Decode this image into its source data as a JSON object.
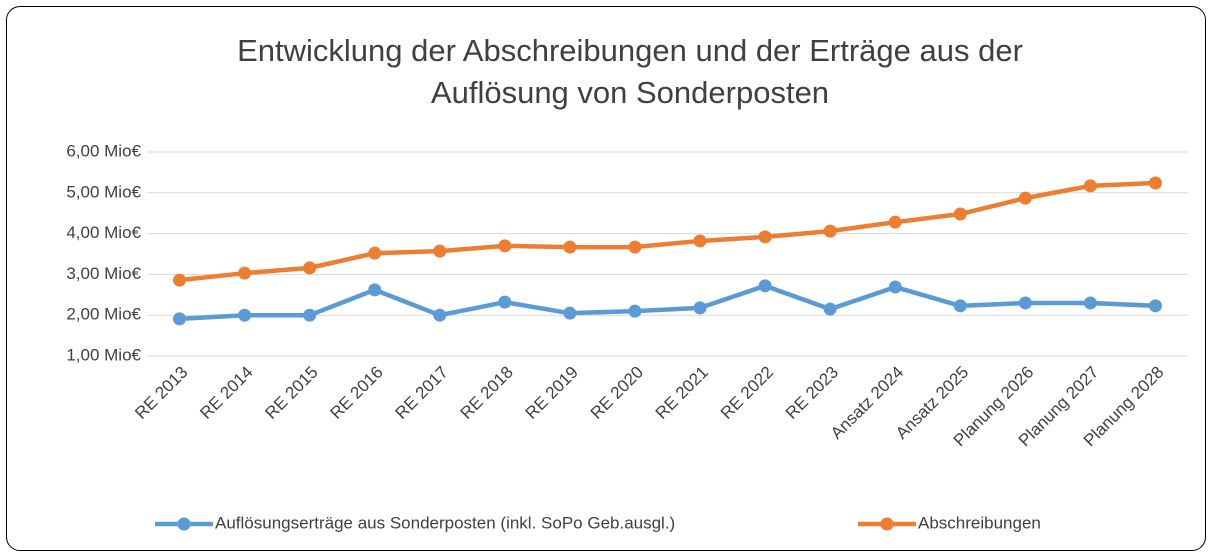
{
  "chart_data": {
    "type": "line",
    "title": "Entwicklung der Abschreibungen und der Erträge aus der Auflösung von Sonderposten",
    "categories": [
      "RE 2013",
      "RE 2014",
      "RE 2015",
      "RE 2016",
      "RE 2017",
      "RE 2018",
      "RE 2019",
      "RE 2020",
      "RE 2021",
      "RE 2022",
      "RE 2023",
      "Ansatz 2024",
      "Ansatz 2025",
      "Planung 2026",
      "Planung 2027",
      "Planung 2028"
    ],
    "series": [
      {
        "name": "Auflösungserträge aus Sonderposten (inkl. SoPo Geb.ausgl.)",
        "color": "#5b9bd5",
        "values": [
          1.91,
          2.0,
          2.0,
          2.62,
          2.0,
          2.32,
          2.05,
          2.1,
          2.18,
          2.72,
          2.15,
          2.69,
          2.23,
          2.3,
          2.3,
          2.23
        ]
      },
      {
        "name": "Abschreibungen",
        "color": "#ed7d31",
        "values": [
          2.86,
          3.03,
          3.16,
          3.52,
          3.57,
          3.7,
          3.67,
          3.67,
          3.82,
          3.92,
          4.06,
          4.28,
          4.48,
          4.87,
          5.17,
          5.24
        ]
      }
    ],
    "ylim": [
      1,
      6
    ],
    "yticks": [
      {
        "value": 1,
        "label": "1,00 Mio€"
      },
      {
        "value": 2,
        "label": "2,00 Mio€"
      },
      {
        "value": 3,
        "label": "3,00 Mio€"
      },
      {
        "value": 4,
        "label": "4,00 Mio€"
      },
      {
        "value": 5,
        "label": "5,00 Mio€"
      },
      {
        "value": 6,
        "label": "6,00 Mio€"
      }
    ],
    "grid": true,
    "legend": "bottom"
  }
}
